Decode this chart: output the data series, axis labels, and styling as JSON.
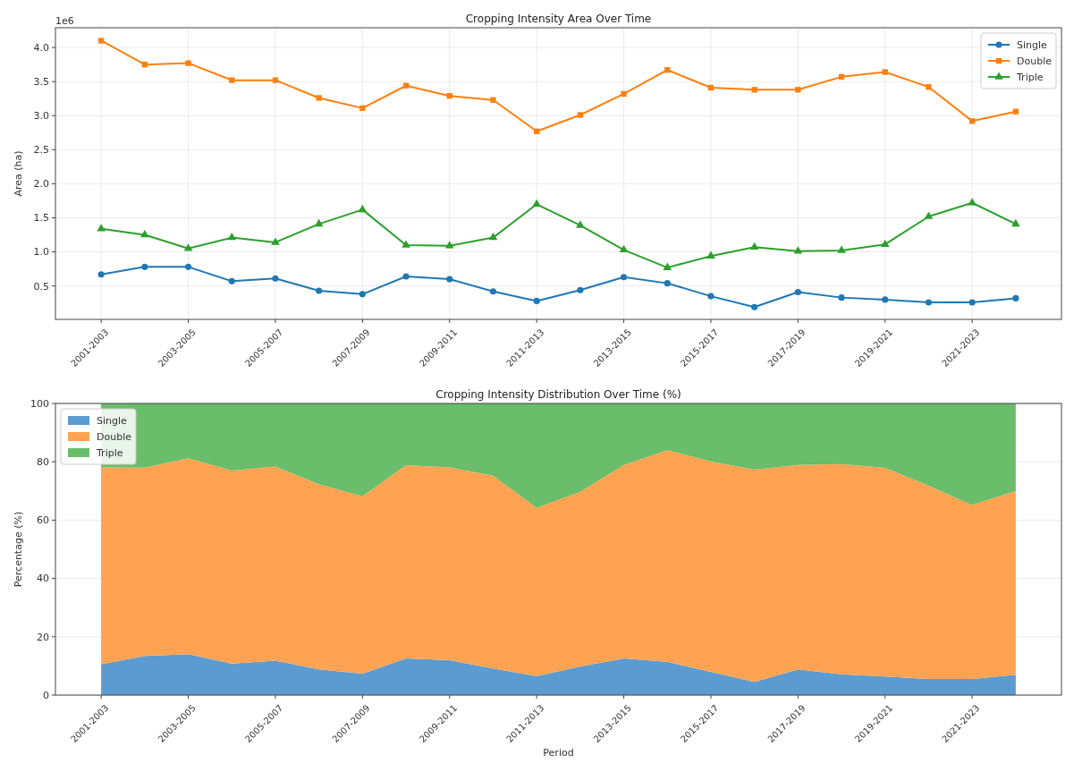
{
  "chart_data": [
    {
      "type": "line",
      "title": "Cropping Intensity Area Over Time",
      "ylabel": "Area (ha)",
      "annotations": [
        "1e6"
      ],
      "categories": [
        "2001-2003",
        null,
        "2003-2005",
        null,
        "2005-2007",
        null,
        "2007-2009",
        null,
        "2009-2011",
        null,
        "2011-2013",
        null,
        "2013-2015",
        null,
        "2015-2017",
        null,
        "2017-2019",
        null,
        "2019-2021",
        null,
        "2021-2023",
        null
      ],
      "series": [
        {
          "name": "Single",
          "color": "#1f77b4",
          "marker": "circle",
          "values": [
            0.67,
            0.78,
            0.78,
            0.57,
            0.61,
            0.43,
            0.38,
            0.64,
            0.6,
            0.42,
            0.28,
            0.44,
            0.63,
            0.54,
            0.35,
            0.19,
            0.41,
            0.33,
            0.3,
            0.26,
            0.26,
            0.32
          ]
        },
        {
          "name": "Double",
          "color": "#ff7f0e",
          "marker": "square",
          "values": [
            4.1,
            3.75,
            3.77,
            3.52,
            3.52,
            3.26,
            3.11,
            3.44,
            3.29,
            3.23,
            2.77,
            3.01,
            3.32,
            3.67,
            3.41,
            3.38,
            3.38,
            3.57,
            3.64,
            3.42,
            2.92,
            3.06
          ]
        },
        {
          "name": "Triple",
          "color": "#2ca02c",
          "marker": "triangle",
          "values": [
            1.34,
            1.25,
            1.05,
            1.21,
            1.14,
            1.41,
            1.62,
            1.1,
            1.09,
            1.21,
            1.7,
            1.39,
            1.03,
            0.77,
            0.94,
            1.07,
            1.01,
            1.02,
            1.11,
            1.52,
            1.72,
            1.41
          ]
        }
      ],
      "ylim": [
        0.01,
        4.29
      ],
      "yticks": [
        0.5,
        {
          "value": 1,
          "label": "1.0"
        },
        1.5,
        {
          "value": 2,
          "label": "2.0"
        },
        2.5,
        {
          "value": 3,
          "label": "3.0"
        },
        3.5,
        {
          "value": 4,
          "label": "4.0"
        }
      ],
      "grid": true,
      "legend": "top right",
      "line_style": "solid"
    },
    {
      "type": "area",
      "stacked": true,
      "title": "Cropping Intensity Distribution Over Time (%)",
      "xlabel": "Period",
      "ylabel": "Percentage (%)",
      "categories": [
        "2001-2003",
        null,
        "2003-2005",
        null,
        "2005-2007",
        null,
        "2007-2009",
        null,
        "2009-2011",
        null,
        "2011-2013",
        null,
        "2013-2015",
        null,
        "2015-2017",
        null,
        "2017-2019",
        null,
        "2019-2021",
        null,
        "2021-2023",
        null
      ],
      "series": [
        {
          "name": "Single",
          "color": "#5b9bd0",
          "values": [
            10.6,
            13.4,
            14.0,
            10.8,
            11.8,
            8.8,
            7.4,
            12.6,
            12.0,
            9.1,
            6.5,
            9.8,
            12.6,
            11.4,
            8.0,
            4.5,
            8.8,
            7.1,
            6.4,
            5.5,
            5.5,
            7.0
          ]
        },
        {
          "name": "Double",
          "color": "#ffa352",
          "values": [
            67.5,
            64.6,
            67.2,
            66.2,
            66.6,
            63.5,
            60.8,
            66.2,
            66.1,
            66.1,
            57.7,
            59.9,
            66.3,
            72.6,
            72.1,
            72.8,
            70.1,
            72.1,
            71.5,
            66.3,
            59.7,
            63.0
          ]
        },
        {
          "name": "Triple",
          "color": "#6abd6a",
          "values": [
            21.9,
            22.0,
            18.8,
            23.0,
            21.6,
            27.7,
            31.8,
            21.2,
            21.9,
            24.8,
            35.8,
            30.3,
            21.1,
            16.0,
            19.9,
            22.7,
            21.1,
            20.8,
            22.1,
            28.2,
            34.8,
            30.0
          ]
        }
      ],
      "ylim": [
        0,
        100
      ],
      "yticks": [
        0,
        20,
        40,
        60,
        80,
        100
      ],
      "grid": true,
      "legend": "top left"
    }
  ]
}
